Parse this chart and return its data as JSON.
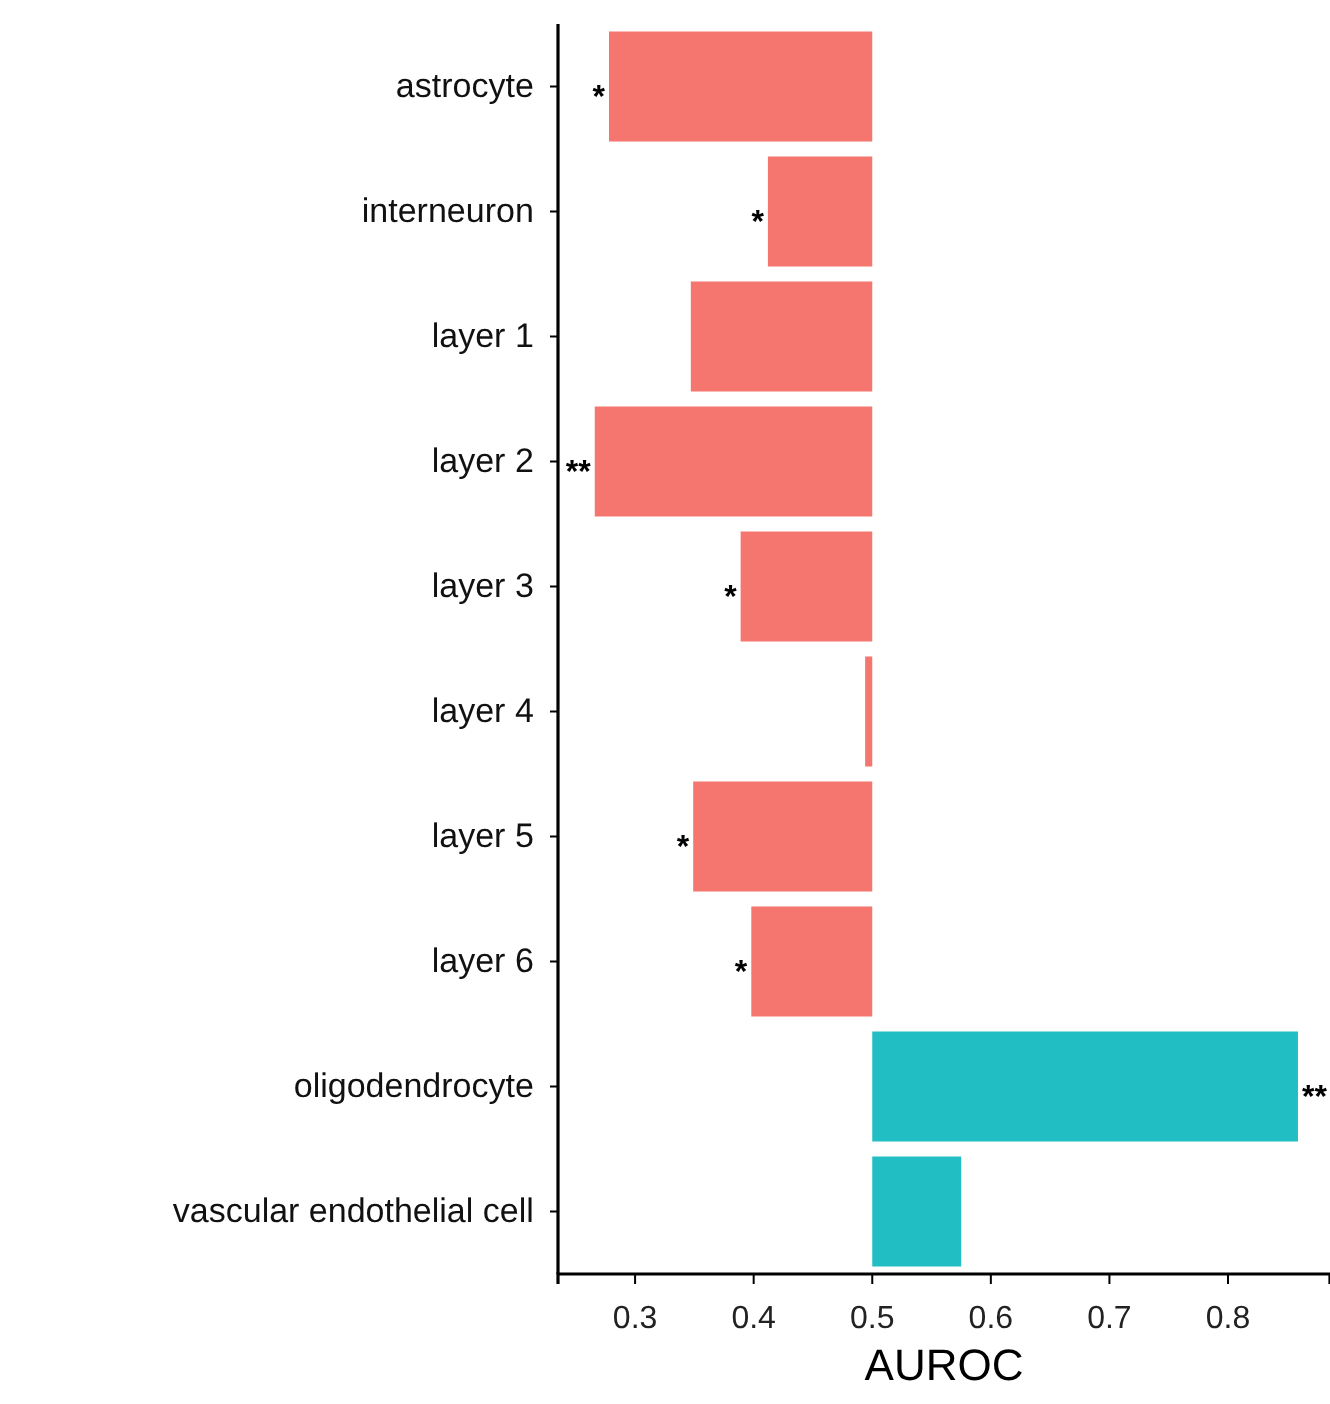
{
  "chart_data": {
    "type": "bar",
    "orientation": "horizontal",
    "xlabel": "AUROC",
    "categories": [
      "astrocyte",
      "interneuron",
      "layer 1",
      "layer 2",
      "layer 3",
      "layer 4",
      "layer 5",
      "layer 6",
      "oligodendrocyte",
      "vascular endothelial cell"
    ],
    "base": [
      0.5,
      0.5,
      0.5,
      0.5,
      0.5,
      0.5,
      0.5,
      0.5,
      0.5,
      0.5
    ],
    "values": [
      -0.222,
      -0.088,
      -0.153,
      -0.234,
      -0.111,
      -0.006,
      -0.151,
      -0.102,
      0.359,
      0.075
    ],
    "colors": [
      "#f4766f",
      "#f4766f",
      "#f4766f",
      "#f4766f",
      "#f4766f",
      "#f4766f",
      "#f4766f",
      "#f4766f",
      "#21bfc3",
      "#21bfc3"
    ],
    "xlim": [
      0.235,
      0.886
    ],
    "xticks": [
      0.3,
      0.4,
      0.5,
      0.6,
      0.7,
      0.8
    ],
    "grid": false,
    "annotations": [
      {
        "text": "*",
        "x": 0.278,
        "y": "astrocyte"
      },
      {
        "text": "*",
        "x": 0.412,
        "y": "interneuron"
      },
      {
        "text": "**",
        "x": 0.266,
        "y": "layer 2"
      },
      {
        "text": "*",
        "x": 0.389,
        "y": "layer 3"
      },
      {
        "text": "*",
        "x": 0.349,
        "y": "layer 5"
      },
      {
        "text": "*",
        "x": 0.398,
        "y": "layer 6"
      },
      {
        "text": "**",
        "x": 0.859,
        "y": "oligodendrocyte"
      }
    ]
  }
}
